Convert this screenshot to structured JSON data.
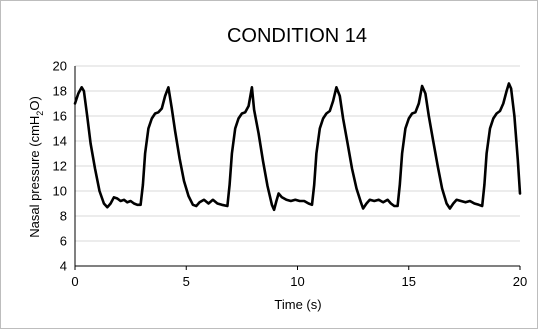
{
  "chart_data": {
    "type": "line",
    "title": "CONDITION 14",
    "xlabel": "Time (s)",
    "ylabel": {
      "prefix": "Nasal pressure (cmH",
      "subscript": "2",
      "suffix": "O)"
    },
    "xlim": [
      0,
      20
    ],
    "ylim": [
      4,
      20
    ],
    "xticks": [
      0,
      5,
      10,
      15,
      20
    ],
    "yticks": [
      4,
      6,
      8,
      10,
      12,
      14,
      16,
      18,
      20
    ],
    "grid": {
      "horizontal": true,
      "vertical": false
    },
    "legend": "none",
    "series": [
      {
        "color": "#000000",
        "points": [
          [
            0.0,
            17.0
          ],
          [
            0.15,
            17.8
          ],
          [
            0.3,
            18.3
          ],
          [
            0.4,
            18.0
          ],
          [
            0.55,
            16.0
          ],
          [
            0.7,
            13.8
          ],
          [
            0.9,
            11.8
          ],
          [
            1.1,
            10.0
          ],
          [
            1.3,
            9.0
          ],
          [
            1.45,
            8.7
          ],
          [
            1.6,
            9.0
          ],
          [
            1.75,
            9.5
          ],
          [
            1.9,
            9.4
          ],
          [
            2.05,
            9.2
          ],
          [
            2.2,
            9.3
          ],
          [
            2.35,
            9.1
          ],
          [
            2.5,
            9.2
          ],
          [
            2.65,
            9.0
          ],
          [
            2.8,
            8.9
          ],
          [
            2.95,
            8.9
          ],
          [
            3.05,
            10.5
          ],
          [
            3.15,
            13.0
          ],
          [
            3.3,
            15.0
          ],
          [
            3.45,
            15.8
          ],
          [
            3.6,
            16.2
          ],
          [
            3.75,
            16.3
          ],
          [
            3.9,
            16.6
          ],
          [
            4.05,
            17.6
          ],
          [
            4.2,
            18.3
          ],
          [
            4.35,
            16.6
          ],
          [
            4.5,
            14.8
          ],
          [
            4.7,
            12.6
          ],
          [
            4.9,
            10.8
          ],
          [
            5.1,
            9.6
          ],
          [
            5.3,
            8.9
          ],
          [
            5.45,
            8.8
          ],
          [
            5.6,
            9.1
          ],
          [
            5.8,
            9.3
          ],
          [
            6.0,
            9.0
          ],
          [
            6.2,
            9.3
          ],
          [
            6.4,
            9.0
          ],
          [
            6.6,
            8.9
          ],
          [
            6.85,
            8.8
          ],
          [
            6.95,
            10.5
          ],
          [
            7.05,
            13.0
          ],
          [
            7.2,
            15.0
          ],
          [
            7.35,
            15.8
          ],
          [
            7.5,
            16.2
          ],
          [
            7.65,
            16.3
          ],
          [
            7.8,
            16.8
          ],
          [
            7.95,
            18.3
          ],
          [
            8.05,
            16.5
          ],
          [
            8.25,
            14.6
          ],
          [
            8.45,
            12.4
          ],
          [
            8.65,
            10.4
          ],
          [
            8.85,
            8.9
          ],
          [
            8.95,
            8.5
          ],
          [
            9.05,
            9.2
          ],
          [
            9.15,
            9.8
          ],
          [
            9.3,
            9.5
          ],
          [
            9.5,
            9.3
          ],
          [
            9.7,
            9.2
          ],
          [
            9.9,
            9.3
          ],
          [
            10.1,
            9.2
          ],
          [
            10.3,
            9.2
          ],
          [
            10.5,
            9.0
          ],
          [
            10.65,
            8.9
          ],
          [
            10.75,
            10.5
          ],
          [
            10.85,
            13.0
          ],
          [
            11.0,
            15.0
          ],
          [
            11.15,
            15.8
          ],
          [
            11.3,
            16.2
          ],
          [
            11.45,
            16.4
          ],
          [
            11.6,
            17.2
          ],
          [
            11.75,
            18.3
          ],
          [
            11.9,
            17.6
          ],
          [
            12.05,
            15.8
          ],
          [
            12.25,
            13.8
          ],
          [
            12.45,
            11.8
          ],
          [
            12.65,
            10.2
          ],
          [
            12.85,
            9.1
          ],
          [
            12.95,
            8.6
          ],
          [
            13.1,
            9.0
          ],
          [
            13.25,
            9.3
          ],
          [
            13.45,
            9.2
          ],
          [
            13.65,
            9.3
          ],
          [
            13.85,
            9.1
          ],
          [
            14.05,
            9.3
          ],
          [
            14.2,
            9.0
          ],
          [
            14.35,
            8.8
          ],
          [
            14.5,
            8.8
          ],
          [
            14.6,
            10.5
          ],
          [
            14.7,
            13.0
          ],
          [
            14.85,
            15.0
          ],
          [
            15.0,
            15.8
          ],
          [
            15.15,
            16.2
          ],
          [
            15.3,
            16.3
          ],
          [
            15.45,
            17.0
          ],
          [
            15.6,
            18.4
          ],
          [
            15.75,
            17.8
          ],
          [
            15.9,
            16.0
          ],
          [
            16.1,
            14.0
          ],
          [
            16.3,
            12.0
          ],
          [
            16.5,
            10.2
          ],
          [
            16.7,
            9.0
          ],
          [
            16.85,
            8.6
          ],
          [
            17.0,
            9.0
          ],
          [
            17.15,
            9.3
          ],
          [
            17.35,
            9.2
          ],
          [
            17.55,
            9.1
          ],
          [
            17.75,
            9.2
          ],
          [
            17.95,
            9.0
          ],
          [
            18.15,
            8.9
          ],
          [
            18.3,
            8.8
          ],
          [
            18.4,
            10.5
          ],
          [
            18.5,
            13.0
          ],
          [
            18.65,
            15.0
          ],
          [
            18.8,
            15.8
          ],
          [
            18.95,
            16.2
          ],
          [
            19.1,
            16.4
          ],
          [
            19.25,
            17.0
          ],
          [
            19.4,
            18.0
          ],
          [
            19.5,
            18.6
          ],
          [
            19.6,
            18.2
          ],
          [
            19.75,
            16.0
          ],
          [
            19.9,
            12.5
          ],
          [
            20.0,
            9.8
          ]
        ]
      }
    ]
  }
}
